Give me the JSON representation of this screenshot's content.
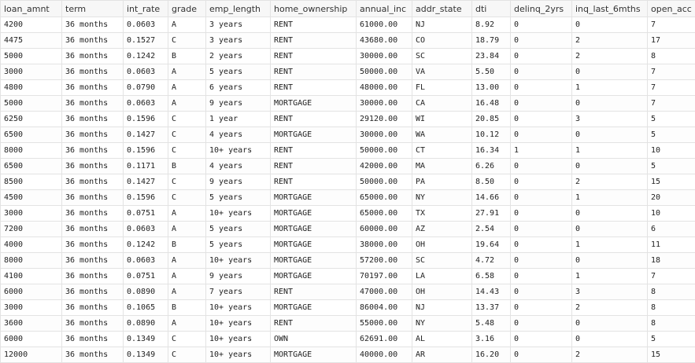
{
  "table": {
    "columns": [
      "loan_amnt",
      "term",
      "int_rate",
      "grade",
      "emp_length",
      "home_ownership",
      "annual_inc",
      "addr_state",
      "dti",
      "delinq_2yrs",
      "inq_last_6mths",
      "open_acc"
    ],
    "rows": [
      [
        "4200",
        "36 months",
        "0.0603",
        "A",
        "3 years",
        "RENT",
        "61000.00",
        "NJ",
        "8.92",
        "0",
        "0",
        "7"
      ],
      [
        "4475",
        "36 months",
        "0.1527",
        "C",
        "3 years",
        "RENT",
        "43680.00",
        "CO",
        "18.79",
        "0",
        "2",
        "17"
      ],
      [
        "5000",
        "36 months",
        "0.1242",
        "B",
        "2 years",
        "RENT",
        "30000.00",
        "SC",
        "23.84",
        "0",
        "2",
        "8"
      ],
      [
        "3000",
        "36 months",
        "0.0603",
        "A",
        "5 years",
        "RENT",
        "50000.00",
        "VA",
        "5.50",
        "0",
        "0",
        "7"
      ],
      [
        "4800",
        "36 months",
        "0.0790",
        "A",
        "6 years",
        "RENT",
        "48000.00",
        "FL",
        "13.00",
        "0",
        "1",
        "7"
      ],
      [
        "5000",
        "36 months",
        "0.0603",
        "A",
        "9 years",
        "MORTGAGE",
        "30000.00",
        "CA",
        "16.48",
        "0",
        "0",
        "7"
      ],
      [
        "6250",
        "36 months",
        "0.1596",
        "C",
        "1 year",
        "RENT",
        "29120.00",
        "WI",
        "20.85",
        "0",
        "3",
        "5"
      ],
      [
        "6500",
        "36 months",
        "0.1427",
        "C",
        "4 years",
        "MORTGAGE",
        "30000.00",
        "WA",
        "10.12",
        "0",
        "0",
        "5"
      ],
      [
        "8000",
        "36 months",
        "0.1596",
        "C",
        "10+ years",
        "RENT",
        "50000.00",
        "CT",
        "16.34",
        "1",
        "1",
        "10"
      ],
      [
        "6500",
        "36 months",
        "0.1171",
        "B",
        "4 years",
        "RENT",
        "42000.00",
        "MA",
        "6.26",
        "0",
        "0",
        "5"
      ],
      [
        "8500",
        "36 months",
        "0.1427",
        "C",
        "9 years",
        "RENT",
        "50000.00",
        "PA",
        "8.50",
        "0",
        "2",
        "15"
      ],
      [
        "4500",
        "36 months",
        "0.1596",
        "C",
        "5 years",
        "MORTGAGE",
        "65000.00",
        "NY",
        "14.66",
        "0",
        "1",
        "20"
      ],
      [
        "3000",
        "36 months",
        "0.0751",
        "A",
        "10+ years",
        "MORTGAGE",
        "65000.00",
        "TX",
        "27.91",
        "0",
        "0",
        "10"
      ],
      [
        "7200",
        "36 months",
        "0.0603",
        "A",
        "5 years",
        "MORTGAGE",
        "60000.00",
        "AZ",
        "2.54",
        "0",
        "0",
        "6"
      ],
      [
        "4000",
        "36 months",
        "0.1242",
        "B",
        "5 years",
        "MORTGAGE",
        "38000.00",
        "OH",
        "19.64",
        "0",
        "1",
        "11"
      ],
      [
        "8000",
        "36 months",
        "0.0603",
        "A",
        "10+ years",
        "MORTGAGE",
        "57200.00",
        "SC",
        "4.72",
        "0",
        "0",
        "18"
      ],
      [
        "4100",
        "36 months",
        "0.0751",
        "A",
        "9 years",
        "MORTGAGE",
        "70197.00",
        "LA",
        "6.58",
        "0",
        "1",
        "7"
      ],
      [
        "6000",
        "36 months",
        "0.0890",
        "A",
        "7 years",
        "RENT",
        "47000.00",
        "OH",
        "14.43",
        "0",
        "3",
        "8"
      ],
      [
        "3000",
        "36 months",
        "0.1065",
        "B",
        "10+ years",
        "MORTGAGE",
        "86004.00",
        "NJ",
        "13.37",
        "0",
        "2",
        "8"
      ],
      [
        "3600",
        "36 months",
        "0.0890",
        "A",
        "10+ years",
        "RENT",
        "55000.00",
        "NY",
        "5.48",
        "0",
        "0",
        "8"
      ],
      [
        "6000",
        "36 months",
        "0.1349",
        "C",
        "10+ years",
        "OWN",
        "62691.00",
        "AL",
        "3.16",
        "0",
        "0",
        "5"
      ],
      [
        "12000",
        "36 months",
        "0.1349",
        "C",
        "10+ years",
        "MORTGAGE",
        "40000.00",
        "AR",
        "16.20",
        "0",
        "2",
        "15"
      ]
    ]
  }
}
